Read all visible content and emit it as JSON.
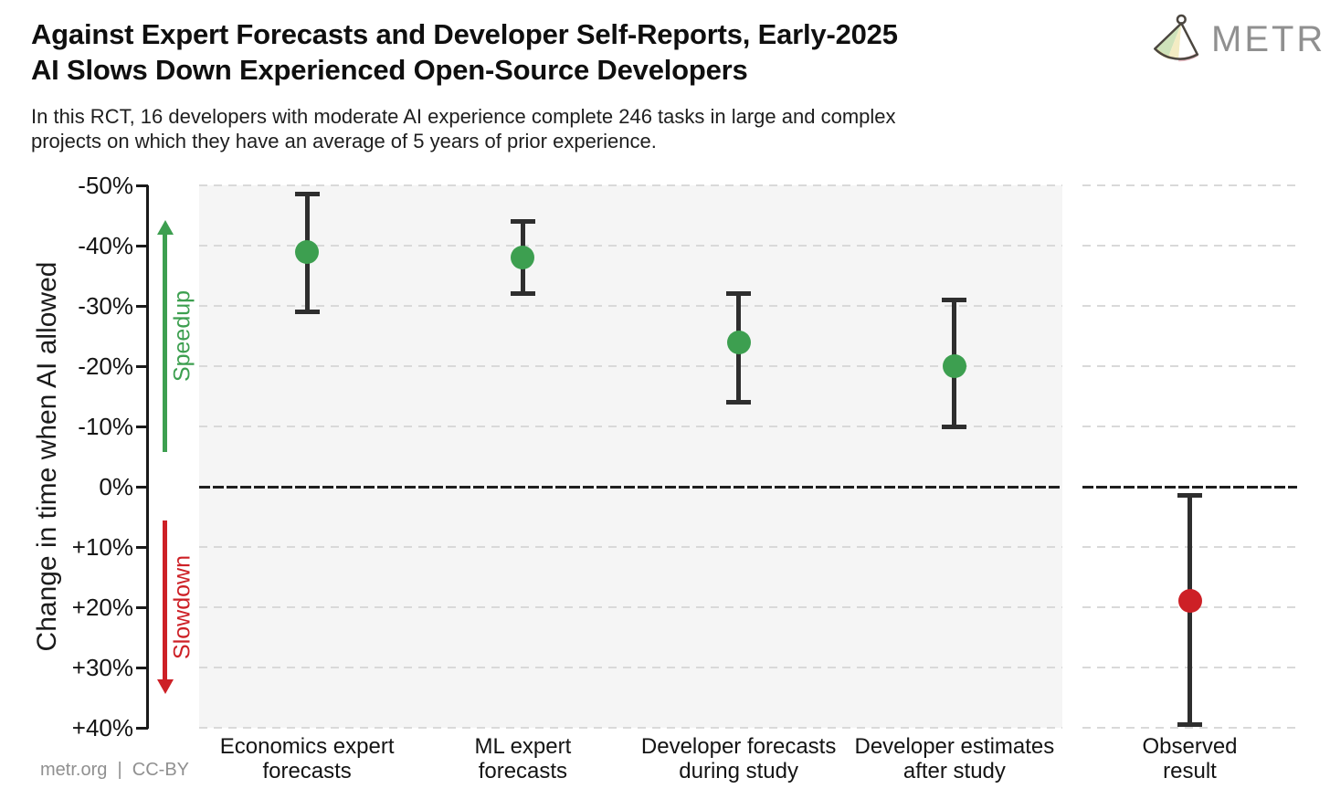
{
  "header": {
    "title_lines": [
      "Against Expert Forecasts and Developer Self-Reports, Early-2025",
      "AI Slows Down Experienced Open-Source Developers"
    ],
    "logo_text": "METR"
  },
  "subtitle_lines": [
    "In this RCT, 16 developers with moderate AI experience complete 246 tasks in large and complex",
    "projects on which they have an average of 5 years of prior experience."
  ],
  "footer": "metr.org  |  CC-BY",
  "y_axis": {
    "title": "Change in time when AI allowed",
    "speedup_label": "Speedup",
    "slowdown_label": "Slowdown",
    "ticks": [
      {
        "value": -50,
        "label": "-50%"
      },
      {
        "value": -40,
        "label": "-40%"
      },
      {
        "value": -30,
        "label": "-30%"
      },
      {
        "value": -20,
        "label": "-20%"
      },
      {
        "value": -10,
        "label": "-10%"
      },
      {
        "value": 0,
        "label": "0%"
      },
      {
        "value": 10,
        "label": "+10%"
      },
      {
        "value": 20,
        "label": "+20%"
      },
      {
        "value": 30,
        "label": "+30%"
      },
      {
        "value": 40,
        "label": "+40%"
      }
    ]
  },
  "chart_data": {
    "type": "scatter",
    "title": "Against Expert Forecasts and Developer Self-Reports, Early-2025 AI Slows Down Experienced Open-Source Developers",
    "ylabel": "Change in time when AI allowed",
    "y_units": "percent change in completion time, negative = speedup",
    "ylim": [
      -50,
      40
    ],
    "y_inverted_axis": true,
    "y_ticks": [
      -50,
      -40,
      -30,
      -20,
      -10,
      0,
      10,
      20,
      30,
      40
    ],
    "grid": "dashed horizontal",
    "zero_reference_line": 0,
    "points": [
      {
        "category": "Economics expert forecasts",
        "label_lines": [
          "Economics expert",
          "forecasts"
        ],
        "panel": "main",
        "value": -39,
        "ci": [
          -48.5,
          -29
        ],
        "color": "#3d9f50"
      },
      {
        "category": "ML expert forecasts",
        "label_lines": [
          "ML expert",
          "forecasts"
        ],
        "panel": "main",
        "value": -38,
        "ci": [
          -44,
          -32
        ],
        "color": "#3d9f50"
      },
      {
        "category": "Developer forecasts during study",
        "label_lines": [
          "Developer forecasts",
          "during study"
        ],
        "panel": "main",
        "value": -24,
        "ci": [
          -32,
          -14
        ],
        "color": "#3d9f50"
      },
      {
        "category": "Developer estimates after study",
        "label_lines": [
          "Developer estimates",
          "after study"
        ],
        "panel": "main",
        "value": -20,
        "ci": [
          -31,
          -10
        ],
        "color": "#3d9f50"
      },
      {
        "category": "Observed result",
        "label_lines": [
          "Observed",
          "result"
        ],
        "panel": "observed",
        "value": 19,
        "ci": [
          1.5,
          39.5
        ],
        "color": "#cd2026"
      }
    ]
  },
  "colors": {
    "speedup_green": "#3d9f50",
    "slowdown_red": "#cd2026",
    "error_bar": "#2e2e2e",
    "panel_bg": "#f5f5f5",
    "gridline": "#d9d9d9",
    "zero_line": "#1f1f1f",
    "logo_gray": "#909090"
  }
}
